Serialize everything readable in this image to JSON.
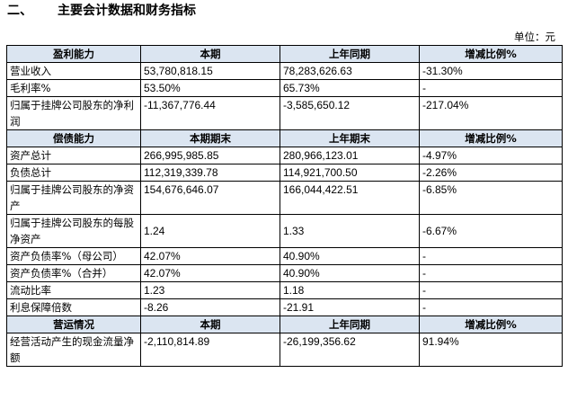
{
  "heading": {
    "number": "二、",
    "title": "主要会计数据和财务指标"
  },
  "unit": "单位：元",
  "sections": [
    {
      "headers": [
        "盈利能力",
        "本期",
        "上年同期",
        "增减比例%"
      ],
      "rows": [
        {
          "label": "营业收入",
          "current": "53,780,818.15",
          "prior": "78,283,626.63",
          "change": "-31.30%"
        },
        {
          "label": "毛利率%",
          "current": "53.50%",
          "prior": "65.73%",
          "change": "-"
        },
        {
          "label": "归属于挂牌公司股东的净利润",
          "current": "-11,367,776.44",
          "prior": "-3,585,650.12",
          "change": "-217.04%"
        }
      ]
    },
    {
      "headers": [
        "偿债能力",
        "本期期末",
        "上年期末",
        "增减比例%"
      ],
      "rows": [
        {
          "label": "资产总计",
          "current": "266,995,985.85",
          "prior": "280,966,123.01",
          "change": "-4.97%"
        },
        {
          "label": "负债总计",
          "current": "112,319,339.78",
          "prior": "114,921,700.50",
          "change": "-2.26%"
        },
        {
          "label": "归属于挂牌公司股东的净资产",
          "current": "154,676,646.07",
          "prior": "166,044,422.51",
          "change": "-6.85%"
        },
        {
          "label": "归属于挂牌公司股东的每股净资产",
          "current": "1.24",
          "prior": "1.33",
          "change": "-6.67%"
        },
        {
          "label": "资产负债率%（母公司）",
          "current": "42.07%",
          "prior": "40.90%",
          "change": "-"
        },
        {
          "label": "资产负债率%（合并）",
          "current": "42.07%",
          "prior": "40.90%",
          "change": "-"
        },
        {
          "label": "流动比率",
          "current": "1.23",
          "prior": "1.18",
          "change": "-"
        },
        {
          "label": "利息保障倍数",
          "current": "-8.26",
          "prior": "-21.91",
          "change": "-"
        }
      ]
    },
    {
      "headers": [
        "营运情况",
        "本期",
        "上年同期",
        "增减比例%"
      ],
      "rows": [
        {
          "label": "经营活动产生的现金流量净额",
          "current": "-2,110,814.89",
          "prior": "-26,199,356.62",
          "change": "91.94%"
        }
      ]
    }
  ]
}
